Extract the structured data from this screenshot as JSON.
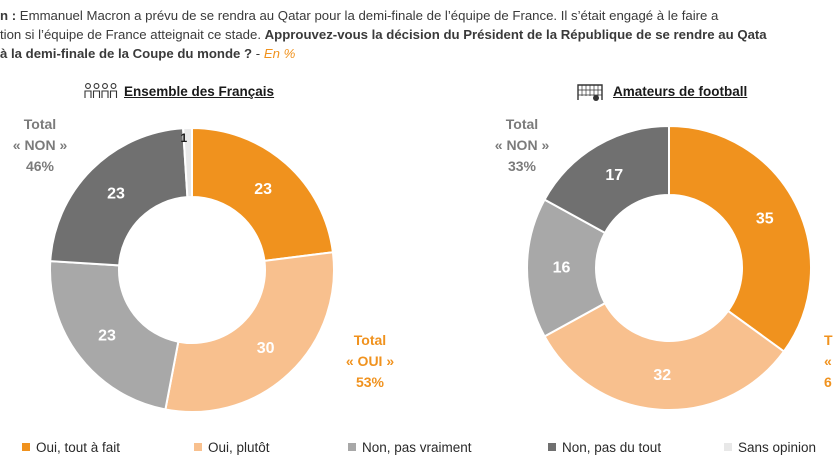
{
  "intro": {
    "line1_prefix": "n : ",
    "line1_text": "Emmanuel Macron a prévu de se rendra au Qatar pour la demi-finale de l’équipe de France. Il s’était engagé à le faire a",
    "line2_text": "tion si l’équipe de France atteignait ce stade. ",
    "line2_bold": "Approuvez-vous la décision du Président de la République de se rendre au Qata",
    "line3_bold": "à la demi-finale de la Coupe du monde ?",
    "line3_sep": " - ",
    "line3_unit": "En %"
  },
  "colors": {
    "oui_tout": "#f0921e",
    "oui_plutot": "#f8c08e",
    "non_pas_vraiment": "#a8a8a8",
    "non_pas_du_tout": "#707070",
    "sans_opinion": "#e8e8e8",
    "oui_text": "#f0921e",
    "non_text": "#7b7b7b"
  },
  "chart_data": [
    {
      "type": "pie",
      "title": "Ensemble des Français",
      "icon": "people-group-icon",
      "categories": [
        "Oui, tout à fait",
        "Oui, plutôt",
        "Non, pas vraiment",
        "Non, pas du tout",
        "Sans opinion"
      ],
      "values": [
        23,
        30,
        23,
        23,
        1
      ],
      "totals": {
        "non": {
          "label": "Total",
          "name": "« NON »",
          "value": "46%"
        },
        "oui": {
          "label": "Total",
          "name": "«  OUI »",
          "value": "53%"
        }
      }
    },
    {
      "type": "pie",
      "title": "Amateurs de football",
      "icon": "football-goal-icon",
      "categories": [
        "Oui, tout à fait",
        "Oui, plutôt",
        "Non, pas vraiment",
        "Non, pas du tout"
      ],
      "values": [
        35,
        32,
        16,
        17
      ],
      "totals": {
        "non": {
          "label": "Total",
          "name": "« NON »",
          "value": "33%"
        },
        "oui": {
          "label": "T",
          "name": "«",
          "value": "6"
        }
      }
    }
  ],
  "legend": [
    {
      "label": "Oui, tout à fait",
      "color_key": "oui_tout"
    },
    {
      "label": "Oui, plutôt",
      "color_key": "oui_plutot"
    },
    {
      "label": "Non, pas vraiment",
      "color_key": "non_pas_vraiment"
    },
    {
      "label": "Non, pas du tout",
      "color_key": "non_pas_du_tout"
    },
    {
      "label": "Sans opinion",
      "color_key": "sans_opinion"
    }
  ]
}
